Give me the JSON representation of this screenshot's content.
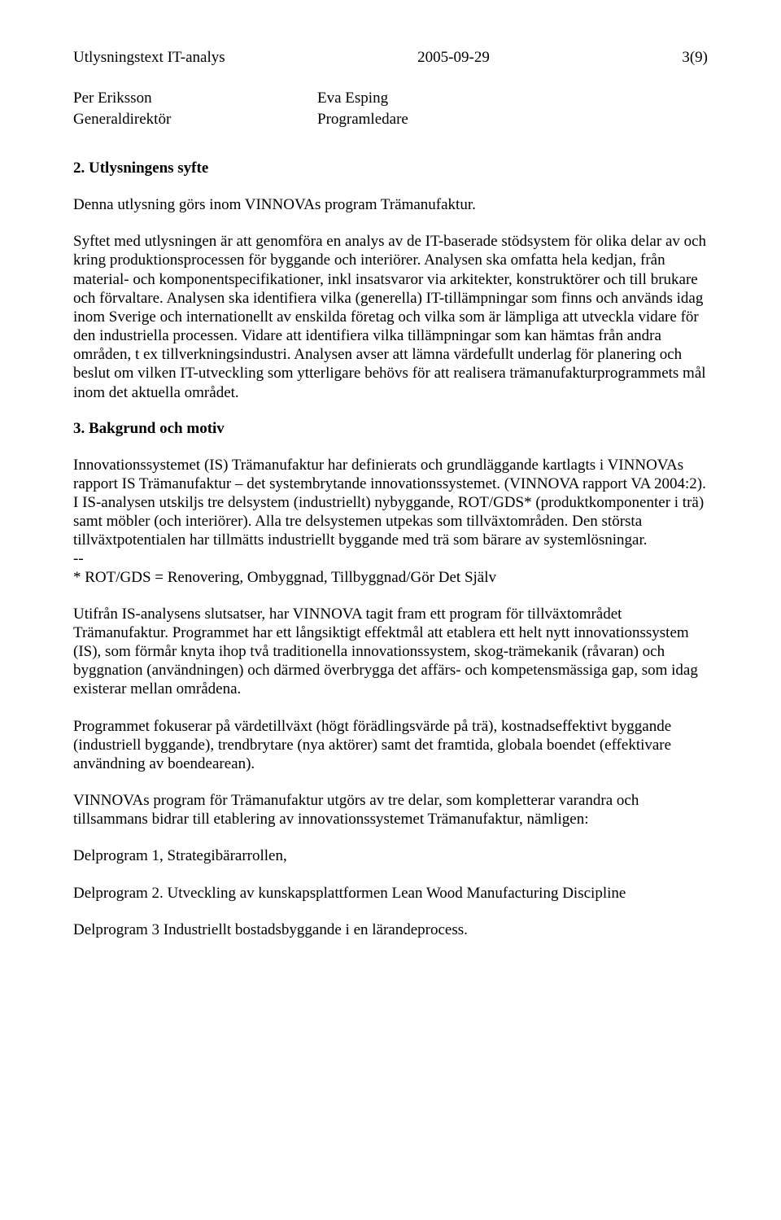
{
  "header": {
    "doc_title": "Utlysningstext IT-analys",
    "date": "2005-09-29",
    "page": "3(9)"
  },
  "signatories": {
    "left_name": "Per Eriksson",
    "left_title": "Generaldirektör",
    "right_name": "Eva Esping",
    "right_title": "Programledare"
  },
  "section2": {
    "heading": "2. Utlysningens syfte",
    "para1": "Denna utlysning görs inom VINNOVAs program Trämanufaktur.",
    "para2": "Syftet med utlysningen är att genomföra en analys av de IT-baserade stödsystem för olika delar av och kring produktionsprocessen för byggande och interiörer. Analysen ska omfatta hela kedjan, från material- och komponentspecifikationer, inkl insatsvaror via arkitekter, konstruktörer och till brukare och förvaltare. Analysen ska identifiera vilka (generella) IT-tillämpningar som finns och används idag inom Sverige och internationellt av enskilda företag och vilka som är lämpliga att utveckla vidare för den industriella processen. Vidare att identifiera vilka tillämpningar som kan hämtas från andra områden, t ex tillverkningsindustri. Analysen avser att lämna värdefullt underlag för planering och beslut om vilken IT-utveckling som ytterligare behövs för att realisera trämanufakturprogrammets mål inom det aktuella området."
  },
  "section3": {
    "heading": "3. Bakgrund och motiv",
    "para1": "Innovationssystemet (IS) Trämanufaktur har definierats och grundläggande kartlagts i VINNOVAs rapport IS Trämanufaktur – det systembrytande innovationssystemet. (VINNOVA rapport VA 2004:2). I IS-analysen utskiljs tre delsystem (industriellt) nybyggande, ROT/GDS* (produktkomponenter i trä) samt möbler (och interiörer). Alla tre delsystemen utpekas som tillväxtområden. Den största tillväxtpotentialen har tillmätts industriellt byggande med trä som bärare av systemlösningar.",
    "footnote_sep": "--",
    "footnote": "* ROT/GDS  = Renovering, Ombyggnad, Tillbyggnad/Gör Det Själv",
    "para2": "Utifrån IS-analysens slutsatser, har VINNOVA tagit fram ett program för tillväxtområdet Trämanufaktur. Programmet har ett långsiktigt effektmål att etablera ett helt nytt innovationssystem (IS), som förmår knyta ihop två traditionella innovationssystem, skog-trämekanik (råvaran) och byggnation (användningen) och därmed överbrygga det affärs- och kompetensmässiga gap, som idag existerar mellan områdena.",
    "para3": "Programmet fokuserar på värdetillväxt (högt förädlingsvärde på trä), kostnadseffektivt byggande (industriell byggande), trendbrytare (nya aktörer) samt det framtida, globala boendet (effektivare användning av boendearean).",
    "para4": "VINNOVAs program för Trämanufaktur utgörs av tre delar, som kompletterar varandra och tillsammans bidrar till etablering av innovationssystemet Trämanufaktur, nämligen:",
    "dp1": "Delprogram 1, Strategibärarrollen,",
    "dp2": "Delprogram 2. Utveckling av kunskapsplattformen Lean Wood Manufacturing Discipline",
    "dp3": "Delprogram 3 Industriellt bostadsbyggande i en lärandeprocess."
  }
}
